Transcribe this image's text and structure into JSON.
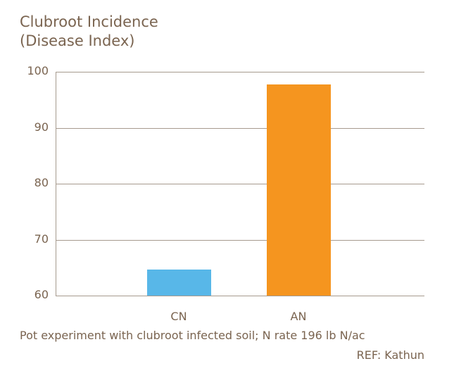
{
  "chart_data": {
    "type": "bar",
    "title": "Clubroot Incidence\n(Disease Index)",
    "title_lines": [
      "Clubroot Incidence",
      "(Disease Index)"
    ],
    "categories": [
      "CN",
      "AN"
    ],
    "values": [
      64.7,
      97.7
    ],
    "colors": [
      "#58b7e8",
      "#f5951f"
    ],
    "xlabel": "",
    "ylabel": "Disease Index",
    "ylim": [
      60,
      100
    ],
    "yticks": [
      100,
      90,
      80,
      70,
      60
    ],
    "grid": true,
    "legend": null,
    "annotations": [
      "Pot experiment with clubroot infected soil; N rate 196 lb N/ac",
      "REF: Kathun"
    ]
  },
  "footer": {
    "note": "Pot experiment with clubroot infected soil; N rate 196 lb N/ac",
    "ref": "REF: Kathun"
  }
}
